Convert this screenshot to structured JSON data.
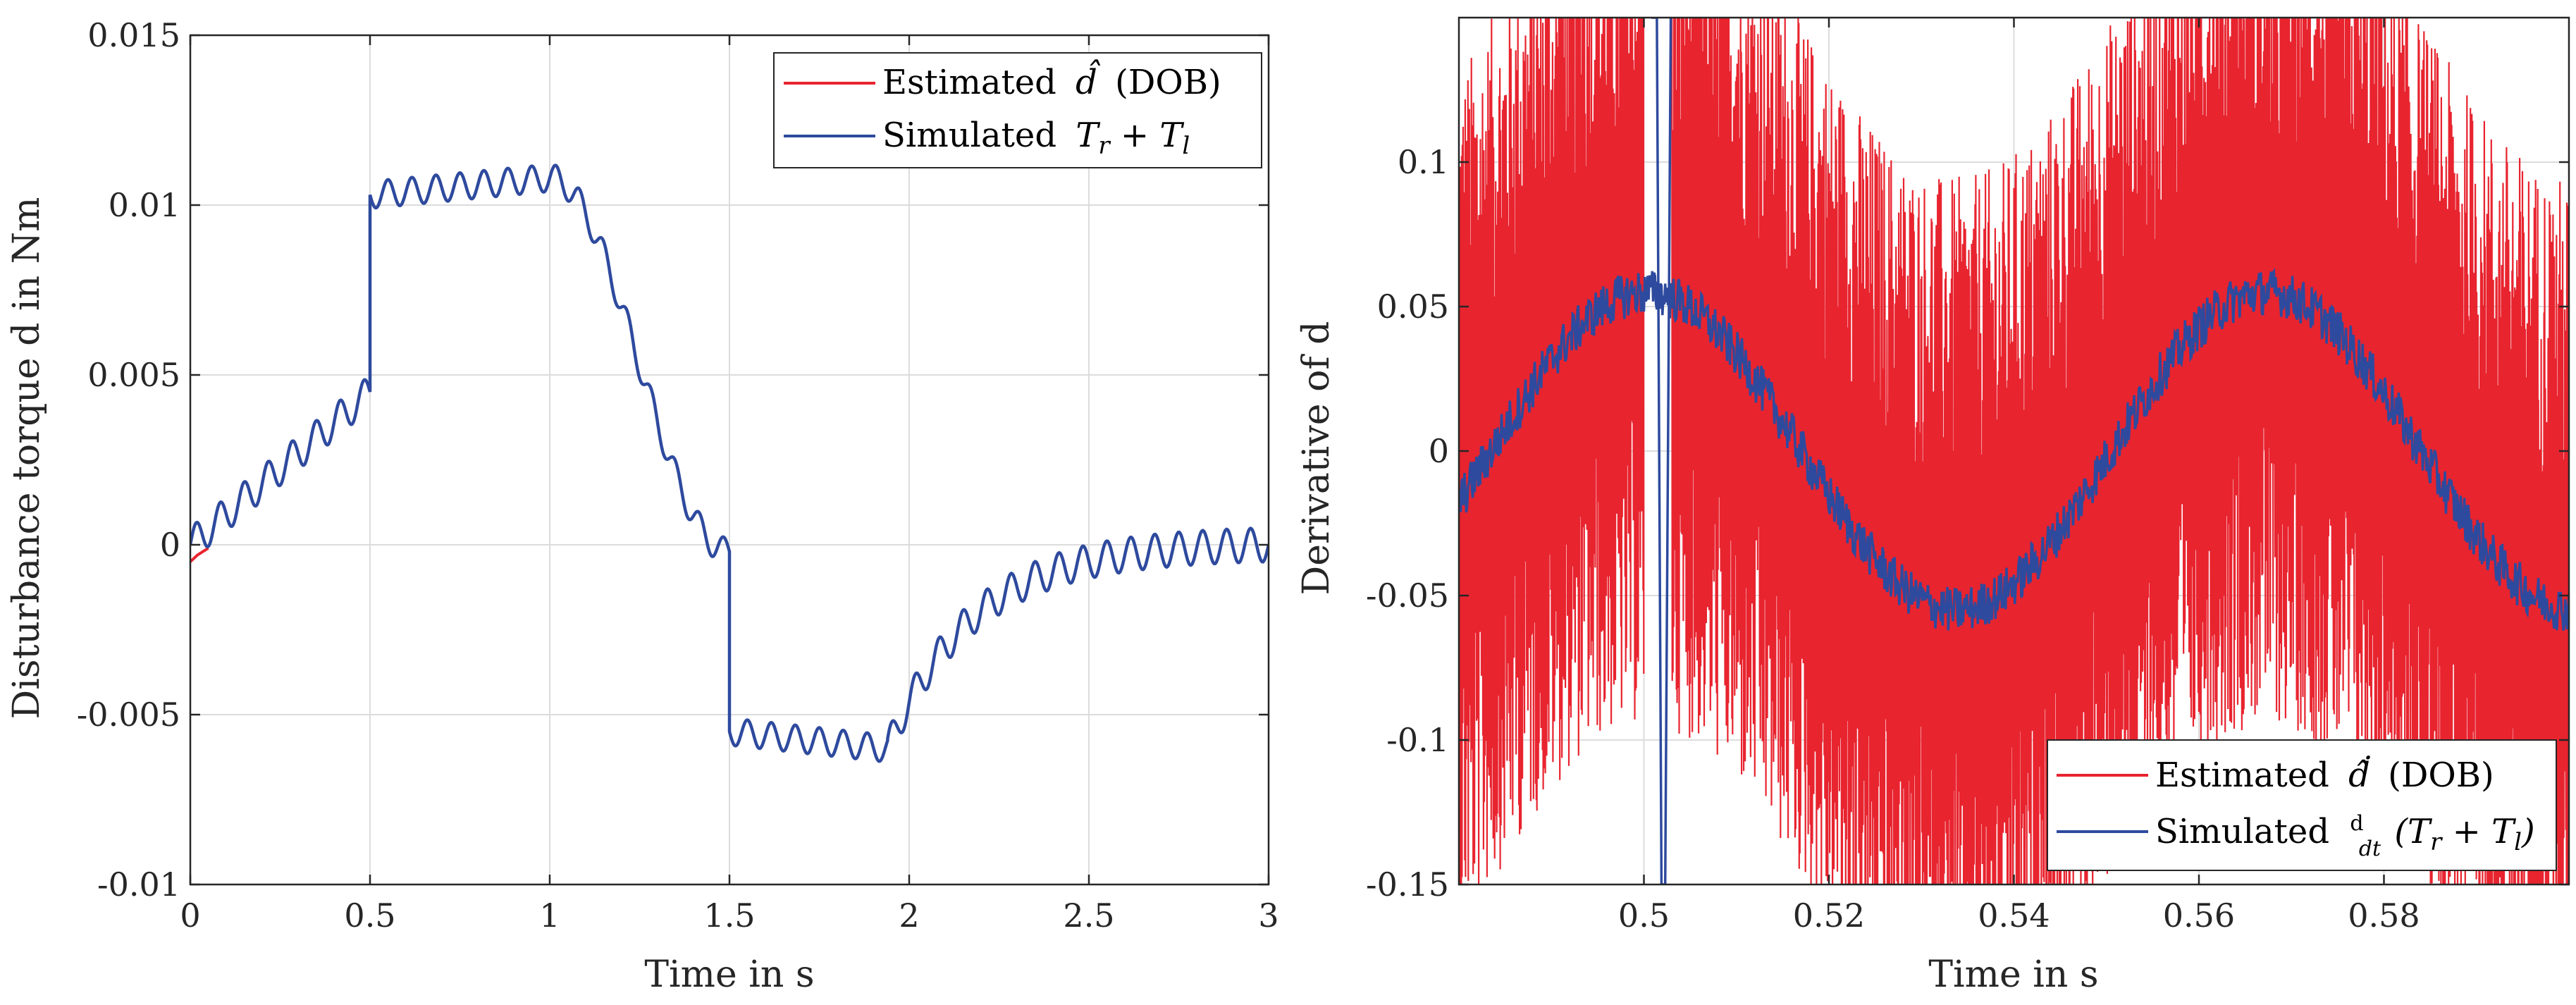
{
  "colors": {
    "estimated": "#e8242f",
    "simulated": "#2e4a9e"
  },
  "chart_data": [
    {
      "type": "line",
      "xlabel": "Time in s",
      "ylabel": "Disturbance torque d in Nm",
      "xlim": [
        0,
        3
      ],
      "ylim": [
        -0.01,
        0.015
      ],
      "xticks": [
        0,
        0.5,
        1,
        1.5,
        2,
        2.5,
        3
      ],
      "xtick_labels": [
        "0",
        "0.5",
        "1",
        "1.5",
        "2",
        "2.5",
        "3"
      ],
      "yticks": [
        -0.01,
        -0.005,
        0,
        0.005,
        0.01,
        0.015
      ],
      "ytick_labels": [
        "-0.01",
        "-0.005",
        "0",
        "0.005",
        "0.01",
        "0.015"
      ],
      "grid": true,
      "legend_position": "top-right",
      "series": [
        {
          "name": "Estimated d̂ (DOB)",
          "legend_prefix": "Estimated",
          "legend_suffix": "(DOB)",
          "color": "#e8242f",
          "x": [
            0,
            0.02,
            0.05
          ],
          "y": [
            -0.0005,
            -0.0003,
            -0.0001
          ]
        },
        {
          "name": "Simulated Tr + Tl",
          "legend_prefix": "Simulated",
          "color": "#2e4a9e",
          "segments": [
            {
              "x0": 0.0,
              "x1": 0.5,
              "base0": 0.0,
              "base1": 0.0045,
              "amp": 0.0005,
              "freq": 15
            },
            {
              "x0": 0.5,
              "x1": 1.0,
              "base0": 0.0103,
              "base1": 0.0108,
              "amp": 0.0004,
              "freq": 15
            },
            {
              "x0": 1.0,
              "x1": 1.5,
              "base0": 0.0108,
              "base1": -0.0002,
              "amp": 0.0004,
              "freq": 15
            },
            {
              "x0": 1.5,
              "x1": 1.94,
              "base0": -0.0055,
              "base1": -0.006,
              "amp": 0.0004,
              "freq": 15
            },
            {
              "x0": 1.94,
              "x1": 3.0,
              "base0": -0.006,
              "base1": 0.0,
              "amp": 0.0005,
              "freq": 15
            }
          ]
        }
      ]
    },
    {
      "type": "line",
      "xlabel": "Time in s",
      "ylabel": "Derivative of d",
      "xlim": [
        0.48,
        0.6
      ],
      "ylim": [
        -0.15,
        0.15
      ],
      "xticks": [
        0.5,
        0.52,
        0.54,
        0.56,
        0.58
      ],
      "xtick_labels": [
        "0.5",
        "0.52",
        "0.54",
        "0.56",
        "0.58"
      ],
      "yticks": [
        -0.15,
        -0.1,
        -0.05,
        0,
        0.05,
        0.1
      ],
      "ytick_labels": [
        "-0.15",
        "-0.1",
        "-0.05",
        "0",
        "0.05",
        "0.1"
      ],
      "grid": true,
      "legend_position": "bottom-right",
      "series": [
        {
          "name": "Estimated d̂ derivative (DOB)",
          "legend_prefix": "Estimated",
          "legend_suffix": "(DOB)",
          "color": "#e8242f",
          "center": "sinusoid with mean 0, amplitude 0.055, period 0.067 s, peak near x=0.567",
          "noise_band": 0.12,
          "gap": [
            0.5,
            0.503
          ]
        },
        {
          "name": "Simulated d/dt (Tr + Tl)",
          "legend_prefix": "Simulated",
          "legend_suffix": "(Tr + Tl)",
          "color": "#2e4a9e",
          "amplitude": 0.055,
          "noise": 0.008,
          "spike_x": 0.502,
          "spike_min": -0.15,
          "spike_max": 0.15
        }
      ]
    }
  ]
}
